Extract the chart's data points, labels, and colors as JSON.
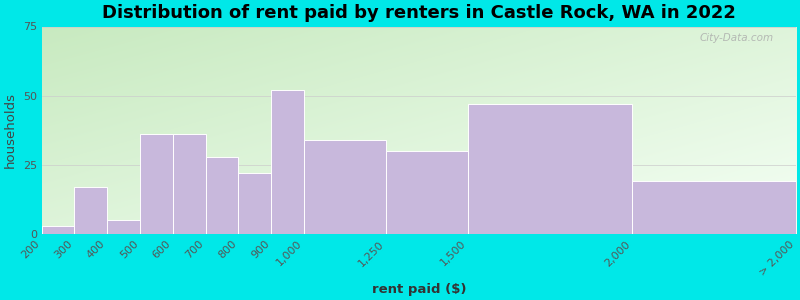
{
  "title": "Distribution of rent paid by renters in Castle Rock, WA in 2022",
  "xlabel": "rent paid ($)",
  "ylabel": "households",
  "bar_labels": [
    "200",
    "300",
    "400",
    "500",
    "600",
    "700",
    "800",
    "900",
    "1,000",
    "1,250",
    "1,500",
    "2,000",
    "> 2,000"
  ],
  "bar_values": [
    3,
    17,
    5,
    36,
    36,
    28,
    22,
    52,
    34,
    30,
    47,
    19
  ],
  "left_edges": [
    200,
    300,
    400,
    500,
    600,
    700,
    800,
    900,
    1000,
    1250,
    1500,
    2000
  ],
  "bar_widths": [
    100,
    100,
    100,
    100,
    100,
    100,
    100,
    100,
    250,
    250,
    500,
    500
  ],
  "tick_positions_data": [
    200,
    300,
    400,
    500,
    600,
    700,
    800,
    900,
    1000,
    1250,
    1500,
    2000,
    2500
  ],
  "tick_labels_display": [
    "200",
    "300",
    "400",
    "500",
    "600",
    "700",
    "800",
    "900",
    "1,000",
    "1,250",
    "1,500",
    "2,000",
    "> 2,000"
  ],
  "bar_color": "#c8b8dc",
  "bar_edge_color": "white",
  "bg_outer": "#00e8e8",
  "bg_grad_top_left": "#c8eac0",
  "bg_grad_bottom_right": "#f5fff5",
  "ylim": [
    0,
    75
  ],
  "yticks": [
    0,
    25,
    50,
    75
  ],
  "x_data_min": 200,
  "x_data_max": 2500,
  "title_fontsize": 13,
  "label_fontsize": 9.5,
  "tick_fontsize": 8,
  "watermark": "City-Data.com"
}
